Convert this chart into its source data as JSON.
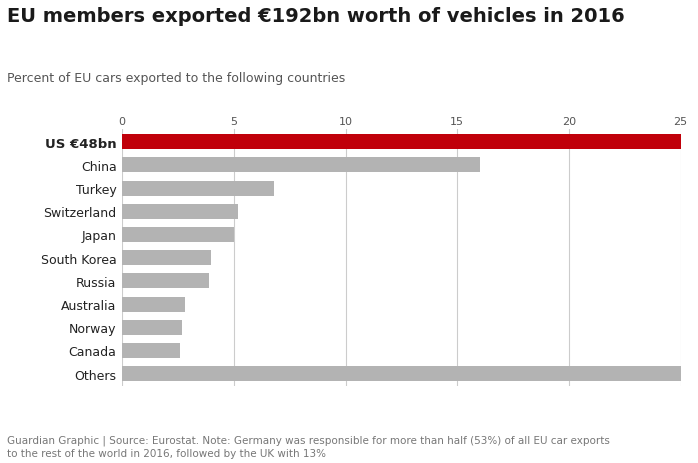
{
  "title": "EU members exported €192bn worth of vehicles in 2016",
  "subtitle": "Percent of EU cars exported to the following countries",
  "categories": [
    "US €48bn",
    "China",
    "Turkey",
    "Switzerland",
    "Japan",
    "South Korea",
    "Russia",
    "Australia",
    "Norway",
    "Canada",
    "Others"
  ],
  "values": [
    25.0,
    16.0,
    6.8,
    5.2,
    5.0,
    4.0,
    3.9,
    2.8,
    2.7,
    2.6,
    25.0
  ],
  "bar_colors": [
    "#c0000a",
    "#b3b3b3",
    "#b3b3b3",
    "#b3b3b3",
    "#b3b3b3",
    "#b3b3b3",
    "#b3b3b3",
    "#b3b3b3",
    "#b3b3b3",
    "#b3b3b3",
    "#b3b3b3"
  ],
  "label_bold": [
    true,
    false,
    false,
    false,
    false,
    false,
    false,
    false,
    false,
    false,
    false
  ],
  "xlim": [
    0,
    25
  ],
  "xticks": [
    0,
    5,
    10,
    15,
    20,
    25
  ],
  "footnote": "Guardian Graphic | Source: Eurostat. Note: Germany was responsible for more than half (53%) of all EU car exports\nto the rest of the world in 2016, followed by the UK with 13%",
  "bg_color": "#ffffff",
  "title_color": "#1a1a1a",
  "subtitle_color": "#555555",
  "label_color": "#222222",
  "footnote_color": "#777777",
  "bar_height": 0.65,
  "grid_color": "#cccccc",
  "grid_linewidth": 0.8,
  "title_fontsize": 14,
  "subtitle_fontsize": 9,
  "label_fontsize": 9,
  "tick_fontsize": 8,
  "footnote_fontsize": 7.5
}
